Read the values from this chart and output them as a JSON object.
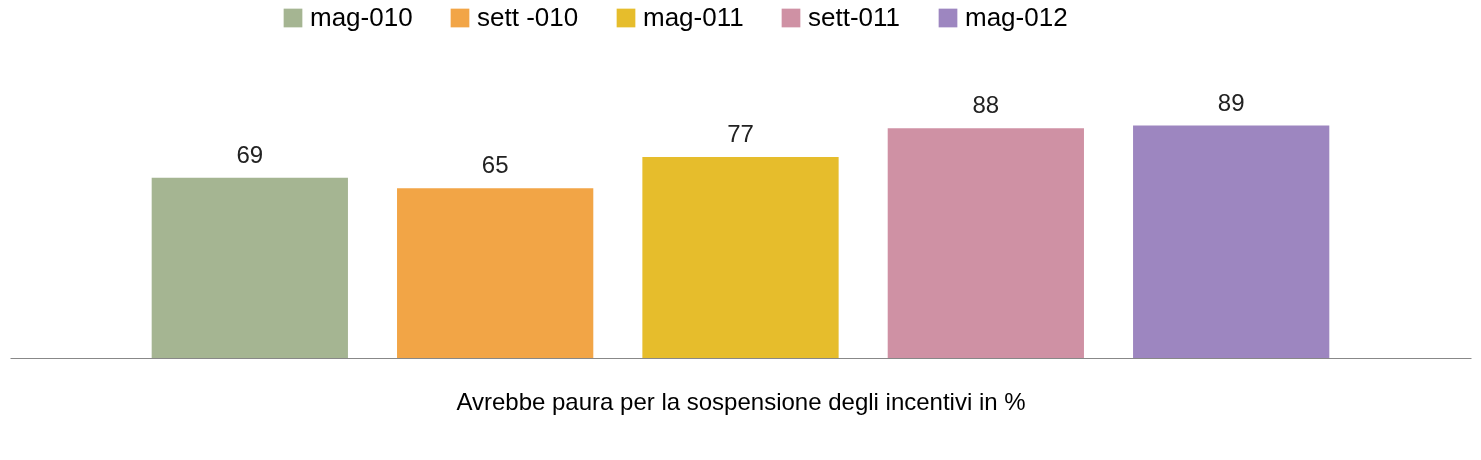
{
  "chart_data": {
    "type": "bar",
    "xlabel": "Avrebbe paura per la sospensione degli incentivi in %",
    "categories": [
      null
    ],
    "series": [
      {
        "name": "mag-010",
        "color": "#a5b592",
        "values": [
          69
        ]
      },
      {
        "name": "sett -010",
        "color": "#f2a546",
        "values": [
          65
        ]
      },
      {
        "name": "mag-011",
        "color": "#e6bd2c",
        "values": [
          77
        ]
      },
      {
        "name": "sett-011",
        "color": "#cf91a4",
        "values": [
          88
        ]
      },
      {
        "name": "mag-012",
        "color": "#9d86c0",
        "values": [
          89
        ]
      }
    ],
    "data_labels": true,
    "legend": "top"
  }
}
